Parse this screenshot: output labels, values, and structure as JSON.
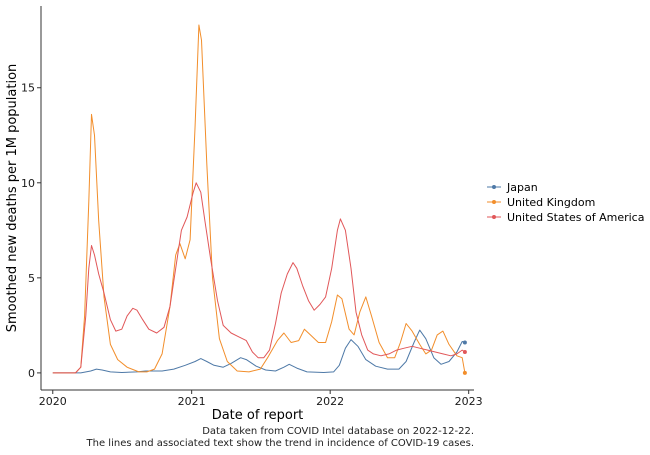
{
  "chart_data": {
    "type": "line",
    "xlabel": "Date of report",
    "ylabel": "Smoothed new deaths per 1M population",
    "xlim": [
      "2019-12-01",
      "2023-01-15"
    ],
    "ylim": [
      -0.9,
      19.3
    ],
    "x_ticks": [
      "2020-01-01",
      "2021-01-01",
      "2022-01-01",
      "2023-01-01"
    ],
    "x_tick_labels": [
      "2020",
      "2021",
      "2022",
      "2023"
    ],
    "y_ticks": [
      0,
      5,
      10,
      15
    ],
    "y_tick_labels": [
      "0",
      "5",
      "10",
      "15"
    ],
    "grid": false,
    "legend_position": "right",
    "series": [
      {
        "name": "Japan",
        "color": "#4e79a7",
        "points": [
          [
            "2020-01-01",
            0
          ],
          [
            "2020-03-15",
            0
          ],
          [
            "2020-04-10",
            0.1
          ],
          [
            "2020-04-25",
            0.2
          ],
          [
            "2020-05-10",
            0.15
          ],
          [
            "2020-06-01",
            0.05
          ],
          [
            "2020-07-01",
            0.02
          ],
          [
            "2020-08-10",
            0.05
          ],
          [
            "2020-09-01",
            0.1
          ],
          [
            "2020-10-15",
            0.1
          ],
          [
            "2020-11-15",
            0.2
          ],
          [
            "2020-12-15",
            0.4
          ],
          [
            "2021-01-10",
            0.6
          ],
          [
            "2021-01-25",
            0.75
          ],
          [
            "2021-02-10",
            0.6
          ],
          [
            "2021-03-01",
            0.4
          ],
          [
            "2021-03-25",
            0.3
          ],
          [
            "2021-04-15",
            0.5
          ],
          [
            "2021-05-10",
            0.8
          ],
          [
            "2021-05-25",
            0.7
          ],
          [
            "2021-06-20",
            0.35
          ],
          [
            "2021-07-15",
            0.15
          ],
          [
            "2021-08-10",
            0.1
          ],
          [
            "2021-09-01",
            0.3
          ],
          [
            "2021-09-15",
            0.45
          ],
          [
            "2021-10-05",
            0.25
          ],
          [
            "2021-11-01",
            0.05
          ],
          [
            "2021-12-15",
            0.02
          ],
          [
            "2022-01-10",
            0.05
          ],
          [
            "2022-01-25",
            0.4
          ],
          [
            "2022-02-10",
            1.3
          ],
          [
            "2022-02-25",
            1.75
          ],
          [
            "2022-03-15",
            1.4
          ],
          [
            "2022-04-05",
            0.7
          ],
          [
            "2022-05-01",
            0.35
          ],
          [
            "2022-06-01",
            0.2
          ],
          [
            "2022-07-01",
            0.2
          ],
          [
            "2022-07-20",
            0.6
          ],
          [
            "2022-08-10",
            1.6
          ],
          [
            "2022-08-25",
            2.25
          ],
          [
            "2022-09-10",
            1.8
          ],
          [
            "2022-10-01",
            0.8
          ],
          [
            "2022-10-20",
            0.45
          ],
          [
            "2022-11-10",
            0.6
          ],
          [
            "2022-12-01",
            1.1
          ],
          [
            "2022-12-15",
            1.65
          ],
          [
            "2022-12-22",
            1.6
          ]
        ]
      },
      {
        "name": "United Kingdom",
        "color": "#f28e2b",
        "points": [
          [
            "2020-01-01",
            0
          ],
          [
            "2020-03-01",
            0
          ],
          [
            "2020-03-15",
            0.3
          ],
          [
            "2020-03-25",
            3
          ],
          [
            "2020-04-05",
            9
          ],
          [
            "2020-04-12",
            13.6
          ],
          [
            "2020-04-20",
            12.5
          ],
          [
            "2020-05-01",
            8
          ],
          [
            "2020-05-15",
            4
          ],
          [
            "2020-06-01",
            1.5
          ],
          [
            "2020-06-20",
            0.7
          ],
          [
            "2020-07-15",
            0.3
          ],
          [
            "2020-08-15",
            0.05
          ],
          [
            "2020-09-05",
            0.05
          ],
          [
            "2020-09-25",
            0.2
          ],
          [
            "2020-10-15",
            1
          ],
          [
            "2020-11-05",
            3.5
          ],
          [
            "2020-11-20",
            6.2
          ],
          [
            "2020-12-01",
            6.8
          ],
          [
            "2020-12-15",
            6
          ],
          [
            "2020-12-28",
            7
          ],
          [
            "2021-01-10",
            13
          ],
          [
            "2021-01-20",
            18.3
          ],
          [
            "2021-01-27",
            17.5
          ],
          [
            "2021-02-10",
            11
          ],
          [
            "2021-02-25",
            5
          ],
          [
            "2021-03-15",
            1.8
          ],
          [
            "2021-04-05",
            0.6
          ],
          [
            "2021-05-01",
            0.1
          ],
          [
            "2021-06-01",
            0.05
          ],
          [
            "2021-07-01",
            0.2
          ],
          [
            "2021-07-20",
            0.8
          ],
          [
            "2021-08-15",
            1.7
          ],
          [
            "2021-09-01",
            2.1
          ],
          [
            "2021-09-20",
            1.6
          ],
          [
            "2021-10-10",
            1.7
          ],
          [
            "2021-10-25",
            2.3
          ],
          [
            "2021-11-10",
            2.0
          ],
          [
            "2021-12-01",
            1.6
          ],
          [
            "2021-12-20",
            1.6
          ],
          [
            "2022-01-05",
            2.7
          ],
          [
            "2022-01-20",
            4.1
          ],
          [
            "2022-02-01",
            3.9
          ],
          [
            "2022-02-20",
            2.3
          ],
          [
            "2022-03-05",
            2.0
          ],
          [
            "2022-03-20",
            3.2
          ],
          [
            "2022-04-05",
            4.0
          ],
          [
            "2022-04-20",
            3.0
          ],
          [
            "2022-05-10",
            1.6
          ],
          [
            "2022-06-01",
            0.8
          ],
          [
            "2022-06-20",
            0.8
          ],
          [
            "2022-07-05",
            1.6
          ],
          [
            "2022-07-20",
            2.6
          ],
          [
            "2022-08-05",
            2.2
          ],
          [
            "2022-08-25",
            1.5
          ],
          [
            "2022-09-10",
            1.0
          ],
          [
            "2022-09-25",
            1.2
          ],
          [
            "2022-10-10",
            2.0
          ],
          [
            "2022-10-25",
            2.2
          ],
          [
            "2022-11-10",
            1.5
          ],
          [
            "2022-12-01",
            0.9
          ],
          [
            "2022-12-15",
            0.8
          ],
          [
            "2022-12-22",
            0
          ]
        ]
      },
      {
        "name": "United States of America",
        "color": "#e15759",
        "points": [
          [
            "2020-01-01",
            0
          ],
          [
            "2020-03-01",
            0
          ],
          [
            "2020-03-15",
            0.3
          ],
          [
            "2020-03-28",
            3
          ],
          [
            "2020-04-05",
            5.5
          ],
          [
            "2020-04-12",
            6.7
          ],
          [
            "2020-04-20",
            6.2
          ],
          [
            "2020-05-01",
            5.2
          ],
          [
            "2020-05-15",
            4.2
          ],
          [
            "2020-06-01",
            2.8
          ],
          [
            "2020-06-15",
            2.2
          ],
          [
            "2020-07-01",
            2.3
          ],
          [
            "2020-07-15",
            3.0
          ],
          [
            "2020-07-30",
            3.4
          ],
          [
            "2020-08-10",
            3.3
          ],
          [
            "2020-08-25",
            2.8
          ],
          [
            "2020-09-10",
            2.3
          ],
          [
            "2020-10-01",
            2.1
          ],
          [
            "2020-10-20",
            2.4
          ],
          [
            "2020-11-05",
            3.5
          ],
          [
            "2020-11-20",
            5.5
          ],
          [
            "2020-12-05",
            7.5
          ],
          [
            "2020-12-20",
            8.2
          ],
          [
            "2021-01-05",
            9.5
          ],
          [
            "2021-01-13",
            10
          ],
          [
            "2021-01-25",
            9.5
          ],
          [
            "2021-02-05",
            8.0
          ],
          [
            "2021-02-20",
            6.0
          ],
          [
            "2021-03-10",
            3.8
          ],
          [
            "2021-03-25",
            2.5
          ],
          [
            "2021-04-15",
            2.1
          ],
          [
            "2021-05-05",
            1.9
          ],
          [
            "2021-05-25",
            1.7
          ],
          [
            "2021-06-10",
            1.1
          ],
          [
            "2021-06-25",
            0.8
          ],
          [
            "2021-07-10",
            0.8
          ],
          [
            "2021-07-25",
            1.2
          ],
          [
            "2021-08-10",
            2.6
          ],
          [
            "2021-08-25",
            4.2
          ],
          [
            "2021-09-10",
            5.2
          ],
          [
            "2021-09-25",
            5.8
          ],
          [
            "2021-10-05",
            5.5
          ],
          [
            "2021-10-20",
            4.6
          ],
          [
            "2021-11-05",
            3.8
          ],
          [
            "2021-11-20",
            3.3
          ],
          [
            "2021-12-05",
            3.6
          ],
          [
            "2021-12-20",
            4.0
          ],
          [
            "2022-01-05",
            5.5
          ],
          [
            "2022-01-20",
            7.5
          ],
          [
            "2022-01-28",
            8.1
          ],
          [
            "2022-02-10",
            7.5
          ],
          [
            "2022-02-25",
            5.5
          ],
          [
            "2022-03-10",
            3.2
          ],
          [
            "2022-03-25",
            2.0
          ],
          [
            "2022-04-10",
            1.2
          ],
          [
            "2022-04-25",
            1.0
          ],
          [
            "2022-05-15",
            0.9
          ],
          [
            "2022-06-05",
            1.0
          ],
          [
            "2022-06-25",
            1.2
          ],
          [
            "2022-07-15",
            1.3
          ],
          [
            "2022-08-05",
            1.4
          ],
          [
            "2022-08-25",
            1.3
          ],
          [
            "2022-09-15",
            1.2
          ],
          [
            "2022-10-05",
            1.1
          ],
          [
            "2022-10-25",
            1.0
          ],
          [
            "2022-11-15",
            0.9
          ],
          [
            "2022-12-01",
            1.0
          ],
          [
            "2022-12-15",
            1.2
          ],
          [
            "2022-12-22",
            1.1
          ]
        ]
      }
    ]
  },
  "caption": {
    "line1": "Data taken from COVID Intel database on 2022-12-22.",
    "line2": "The lines and associated text show the trend in incidence of COVID-19 cases."
  }
}
